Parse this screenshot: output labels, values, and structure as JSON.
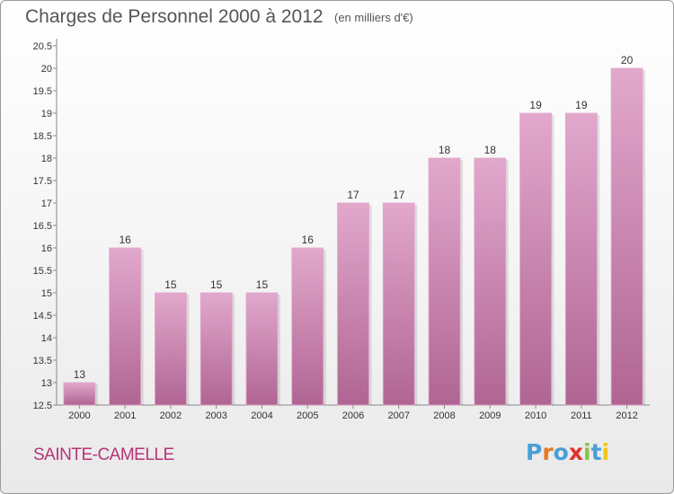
{
  "header": {
    "title": "Charges de Personnel 2000 à 2012",
    "unit": "(en milliers d'€)"
  },
  "footer": {
    "commune": "SAINTE-CAMELLE",
    "logo": "Proxiti"
  },
  "colors": {
    "bar": "#c978a8",
    "bar_light": "#e2a8cc",
    "bar_dark": "#b06593",
    "commune_text": "#b63478",
    "logo_letters": [
      "#4a9fd8",
      "#e87722",
      "#4a9fd8",
      "#e0312e",
      "#8bc34a",
      "#4a9fd8",
      "#f0c419"
    ]
  },
  "chart_data": {
    "type": "bar",
    "categories": [
      "2000",
      "2001",
      "2002",
      "2003",
      "2004",
      "2005",
      "2006",
      "2007",
      "2008",
      "2009",
      "2010",
      "2011",
      "2012"
    ],
    "values": [
      13,
      16,
      15,
      15,
      15,
      16,
      17,
      17,
      18,
      18,
      19,
      19,
      20
    ],
    "ylim": [
      12.5,
      20.5
    ],
    "yticks": [
      "12.5",
      "13",
      "13.5",
      "14",
      "14.5",
      "15",
      "15.5",
      "16",
      "16.5",
      "17",
      "17.5",
      "18",
      "18.5",
      "19",
      "19.5",
      "20",
      "20.5"
    ],
    "grid": false,
    "legend": "none"
  }
}
